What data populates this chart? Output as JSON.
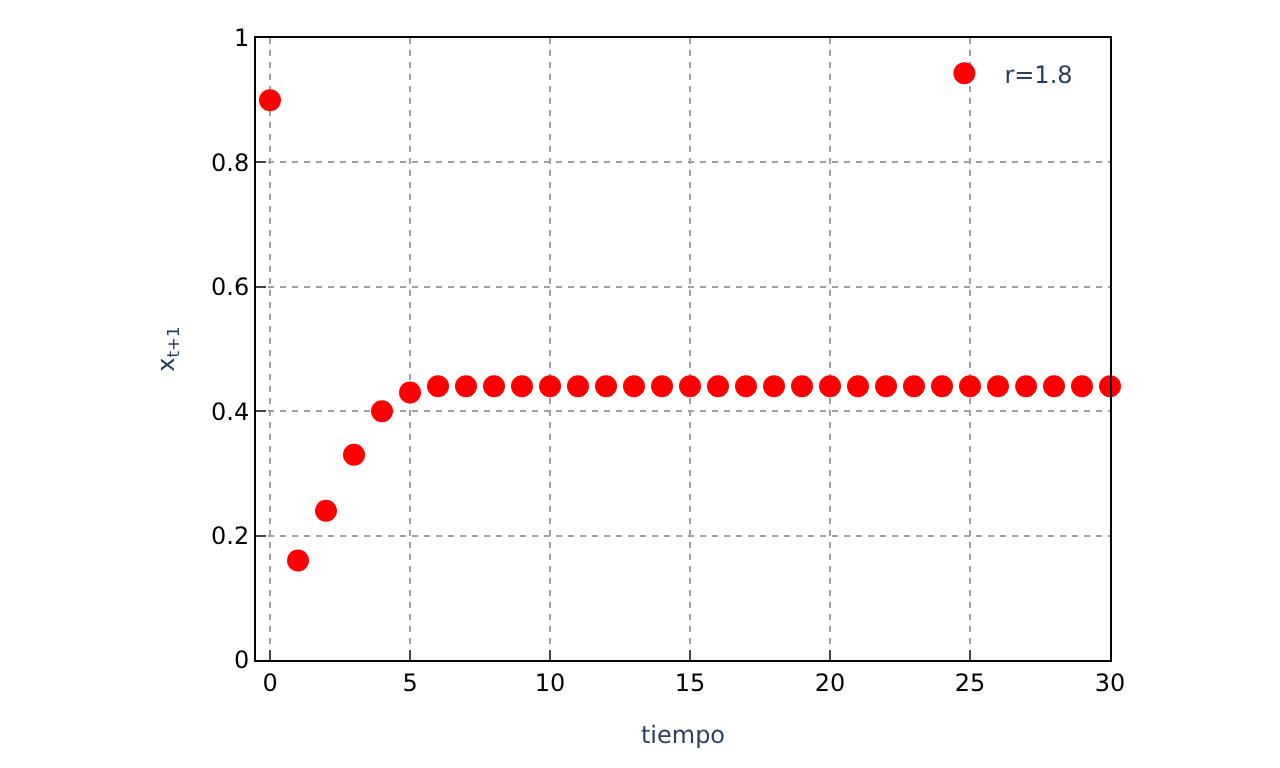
{
  "chart_data": {
    "type": "scatter",
    "xlabel": "tiempo",
    "ylabel": "x$_{t+1}$",
    "x": [
      0,
      1,
      2,
      3,
      4,
      5,
      6,
      7,
      8,
      9,
      10,
      11,
      12,
      13,
      14,
      15,
      16,
      17,
      18,
      19,
      20,
      21,
      22,
      23,
      24,
      25,
      26,
      27,
      28,
      29,
      30
    ],
    "series": [
      {
        "name": "r=1.8",
        "color": "#ff0000",
        "values": [
          0.9,
          0.16,
          0.24,
          0.33,
          0.4,
          0.43,
          0.44,
          0.44,
          0.44,
          0.44,
          0.44,
          0.44,
          0.44,
          0.44,
          0.44,
          0.44,
          0.44,
          0.44,
          0.44,
          0.44,
          0.44,
          0.44,
          0.44,
          0.44,
          0.44,
          0.44,
          0.44,
          0.44,
          0.44,
          0.44,
          0.44
        ]
      }
    ],
    "xlim": [
      -0.5,
      30
    ],
    "xticks": [
      0,
      5,
      10,
      15,
      20,
      25,
      30
    ],
    "ylim": [
      0,
      1
    ],
    "yticks": [
      0,
      0.2,
      0.4,
      0.6,
      0.8,
      1
    ],
    "grid": true,
    "legend": "top right",
    "marker": "circle"
  }
}
